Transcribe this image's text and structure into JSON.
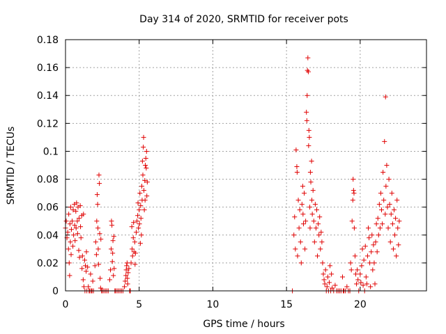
{
  "chart_data": {
    "type": "scatter",
    "title": "Day 314 of 2020, SRMTID for receiver pots",
    "xlabel": "GPS time / hours",
    "ylabel": "SRMTID / TECUs",
    "xlim": [
      0,
      24.5
    ],
    "ylim": [
      0,
      0.18
    ],
    "grid": true,
    "marker": "+",
    "marker_color": "#e00000",
    "x_ticks": [
      0,
      5,
      10,
      15,
      20
    ],
    "x_tick_labels": [
      "0",
      "5",
      "10",
      "15",
      "20"
    ],
    "y_ticks": [
      0,
      0.02,
      0.04,
      0.06,
      0.08,
      0.1,
      0.12,
      0.14,
      0.16,
      0.18
    ],
    "y_tick_labels": [
      "0",
      "0.02",
      "0.04",
      "0.06",
      "0.08",
      "0.1",
      "0.12",
      "0.14",
      "0.16",
      "0.18"
    ],
    "series": [
      {
        "name": "pots",
        "points": [
          [
            0.0,
            0.045
          ],
          [
            0.05,
            0.05
          ],
          [
            0.1,
            0.038
          ],
          [
            0.15,
            0.042
          ],
          [
            0.2,
            0.03
          ],
          [
            0.22,
            0.055
          ],
          [
            0.25,
            0.02
          ],
          [
            0.28,
            0.011
          ],
          [
            0.3,
            0.048
          ],
          [
            0.33,
            0.035
          ],
          [
            0.35,
            0.06
          ],
          [
            0.38,
            0.026
          ],
          [
            0.4,
            0.044
          ],
          [
            0.45,
            0.05
          ],
          [
            0.5,
            0.032
          ],
          [
            0.52,
            0.058
          ],
          [
            0.55,
            0.04
          ],
          [
            0.6,
            0.062
          ],
          [
            0.62,
            0.047
          ],
          [
            0.65,
            0.036
          ],
          [
            0.7,
            0.057
          ],
          [
            0.72,
            0.045
          ],
          [
            0.75,
            0.063
          ],
          [
            0.8,
            0.05
          ],
          [
            0.82,
            0.041
          ],
          [
            0.85,
            0.06
          ],
          [
            0.9,
            0.029
          ],
          [
            0.92,
            0.052
          ],
          [
            0.95,
            0.024
          ],
          [
            1.0,
            0.061
          ],
          [
            1.02,
            0.046
          ],
          [
            1.05,
            0.038
          ],
          [
            1.1,
            0.054
          ],
          [
            1.12,
            0.016
          ],
          [
            1.15,
            0.025
          ],
          [
            1.2,
            0.008
          ],
          [
            1.22,
            0.055
          ],
          [
            1.25,
            0.003
          ],
          [
            1.3,
            0.022
          ],
          [
            1.32,
            0.0
          ],
          [
            1.35,
            0.018
          ],
          [
            1.4,
            0.014
          ],
          [
            1.42,
            0.028
          ],
          [
            1.45,
            0.0
          ],
          [
            1.5,
            0.017
          ],
          [
            1.55,
            0.003
          ],
          [
            1.6,
            0.0
          ],
          [
            1.65,
            0.0
          ],
          [
            1.7,
            0.012
          ],
          [
            1.75,
            0.0
          ],
          [
            1.8,
            0.0
          ],
          [
            1.85,
            0.007
          ],
          [
            1.9,
            0.0
          ],
          [
            2.0,
            0.018
          ],
          [
            2.05,
            0.035
          ],
          [
            2.1,
            0.026
          ],
          [
            2.12,
            0.05
          ],
          [
            2.15,
            0.069
          ],
          [
            2.18,
            0.062
          ],
          [
            2.2,
            0.045
          ],
          [
            2.22,
            0.03
          ],
          [
            2.25,
            0.019
          ],
          [
            2.27,
            0.083
          ],
          [
            2.3,
            0.077
          ],
          [
            2.32,
            0.041
          ],
          [
            2.35,
            0.009
          ],
          [
            2.38,
            0.002
          ],
          [
            2.4,
            0.037
          ],
          [
            2.45,
            0.0
          ],
          [
            2.5,
            0.0
          ],
          [
            2.6,
            0.0
          ],
          [
            2.7,
            0.0
          ],
          [
            2.8,
            0.0
          ],
          [
            2.9,
            0.0
          ],
          [
            3.0,
            0.008
          ],
          [
            3.05,
            0.015
          ],
          [
            3.1,
            0.03
          ],
          [
            3.12,
            0.05
          ],
          [
            3.15,
            0.047
          ],
          [
            3.18,
            0.021
          ],
          [
            3.2,
            0.027
          ],
          [
            3.22,
            0.036
          ],
          [
            3.25,
            0.011
          ],
          [
            3.28,
            0.039
          ],
          [
            3.3,
            0.016
          ],
          [
            3.35,
            0.0
          ],
          [
            3.4,
            0.0
          ],
          [
            3.5,
            0.0
          ],
          [
            3.6,
            0.0
          ],
          [
            3.7,
            0.0
          ],
          [
            3.8,
            0.0
          ],
          [
            3.9,
            0.0
          ],
          [
            4.0,
            0.003
          ],
          [
            4.05,
            0.007
          ],
          [
            4.1,
            0.011
          ],
          [
            4.12,
            0.015
          ],
          [
            4.15,
            0.018
          ],
          [
            4.18,
            0.02
          ],
          [
            4.2,
            0.009
          ],
          [
            4.22,
            0.005
          ],
          [
            4.25,
            0.013
          ],
          [
            4.3,
            0.016
          ],
          [
            4.35,
            0.0
          ],
          [
            4.4,
            0.0
          ],
          [
            4.45,
            0.02
          ],
          [
            4.5,
            0.046
          ],
          [
            4.52,
            0.03
          ],
          [
            4.55,
            0.025
          ],
          [
            4.6,
            0.038
          ],
          [
            4.62,
            0.049
          ],
          [
            4.65,
            0.028
          ],
          [
            4.7,
            0.035
          ],
          [
            4.72,
            0.019
          ],
          [
            4.75,
            0.027
          ],
          [
            4.8,
            0.042
          ],
          [
            4.85,
            0.05
          ],
          [
            4.9,
            0.054
          ],
          [
            4.92,
            0.063
          ],
          [
            4.95,
            0.045
          ],
          [
            5.0,
            0.058
          ],
          [
            5.02,
            0.048
          ],
          [
            5.05,
            0.07
          ],
          [
            5.08,
            0.034
          ],
          [
            5.1,
            0.061
          ],
          [
            5.12,
            0.052
          ],
          [
            5.15,
            0.04
          ],
          [
            5.18,
            0.075
          ],
          [
            5.2,
            0.065
          ],
          [
            5.22,
            0.093
          ],
          [
            5.25,
            0.083
          ],
          [
            5.28,
            0.103
          ],
          [
            5.3,
            0.11
          ],
          [
            5.32,
            0.072
          ],
          [
            5.35,
            0.058
          ],
          [
            5.38,
            0.079
          ],
          [
            5.4,
            0.065
          ],
          [
            5.42,
            0.09
          ],
          [
            5.45,
            0.095
          ],
          [
            5.48,
            0.088
          ],
          [
            5.5,
            0.1
          ],
          [
            5.52,
            0.068
          ],
          [
            5.55,
            0.078
          ],
          [
            15.4,
            0.0
          ],
          [
            15.5,
            0.04
          ],
          [
            15.55,
            0.053
          ],
          [
            15.6,
            0.03
          ],
          [
            15.65,
            0.101
          ],
          [
            15.7,
            0.089
          ],
          [
            15.72,
            0.085
          ],
          [
            15.75,
            0.025
          ],
          [
            15.8,
            0.065
          ],
          [
            15.85,
            0.045
          ],
          [
            15.9,
            0.058
          ],
          [
            15.95,
            0.035
          ],
          [
            16.0,
            0.02
          ],
          [
            16.05,
            0.062
          ],
          [
            16.1,
            0.075
          ],
          [
            16.12,
            0.055
          ],
          [
            16.15,
            0.048
          ],
          [
            16.2,
            0.07
          ],
          [
            16.25,
            0.03
          ],
          [
            16.3,
            0.05
          ],
          [
            16.35,
            0.128
          ],
          [
            16.38,
            0.122
          ],
          [
            16.4,
            0.14
          ],
          [
            16.42,
            0.158
          ],
          [
            16.45,
            0.167
          ],
          [
            16.48,
            0.157
          ],
          [
            16.5,
            0.104
          ],
          [
            16.52,
            0.115
          ],
          [
            16.55,
            0.11
          ],
          [
            16.58,
            0.06
          ],
          [
            16.6,
            0.045
          ],
          [
            16.62,
            0.085
          ],
          [
            16.65,
            0.078
          ],
          [
            16.7,
            0.093
          ],
          [
            16.72,
            0.065
          ],
          [
            16.75,
            0.055
          ],
          [
            16.8,
            0.072
          ],
          [
            16.85,
            0.05
          ],
          [
            16.9,
            0.035
          ],
          [
            16.95,
            0.062
          ],
          [
            17.0,
            0.045
          ],
          [
            17.05,
            0.058
          ],
          [
            17.1,
            0.025
          ],
          [
            17.15,
            0.048
          ],
          [
            17.2,
            0.04
          ],
          [
            17.25,
            0.053
          ],
          [
            17.3,
            0.03
          ],
          [
            17.35,
            0.042
          ],
          [
            17.4,
            0.035
          ],
          [
            17.45,
            0.02
          ],
          [
            17.5,
            0.012
          ],
          [
            17.55,
            0.008
          ],
          [
            17.6,
            0.005
          ],
          [
            17.65,
            0.015
          ],
          [
            17.7,
            0.0
          ],
          [
            17.75,
            0.003
          ],
          [
            17.8,
            0.01
          ],
          [
            17.85,
            0.0
          ],
          [
            17.9,
            0.006
          ],
          [
            17.95,
            0.018
          ],
          [
            18.0,
            0.0
          ],
          [
            18.05,
            0.012
          ],
          [
            18.1,
            0.002
          ],
          [
            18.2,
            0.0
          ],
          [
            18.3,
            0.004
          ],
          [
            18.4,
            0.0
          ],
          [
            18.5,
            0.0
          ],
          [
            18.6,
            0.0
          ],
          [
            18.7,
            0.0
          ],
          [
            18.8,
            0.01
          ],
          [
            18.85,
            0.0
          ],
          [
            18.9,
            0.0
          ],
          [
            19.0,
            0.0
          ],
          [
            19.1,
            0.003
          ],
          [
            19.2,
            0.0
          ],
          [
            19.3,
            0.0
          ],
          [
            19.35,
            0.02
          ],
          [
            19.4,
            0.015
          ],
          [
            19.45,
            0.05
          ],
          [
            19.5,
            0.065
          ],
          [
            19.52,
            0.08
          ],
          [
            19.55,
            0.072
          ],
          [
            19.58,
            0.07
          ],
          [
            19.6,
            0.045
          ],
          [
            19.65,
            0.025
          ],
          [
            19.7,
            0.012
          ],
          [
            19.75,
            0.005
          ],
          [
            19.8,
            0.015
          ],
          [
            19.85,
            0.008
          ],
          [
            19.9,
            0.0
          ],
          [
            20.0,
            0.012
          ],
          [
            20.05,
            0.006
          ],
          [
            20.1,
            0.018
          ],
          [
            20.15,
            0.03
          ],
          [
            20.2,
            0.004
          ],
          [
            20.25,
            0.022
          ],
          [
            20.3,
            0.0
          ],
          [
            20.35,
            0.032
          ],
          [
            20.4,
            0.01
          ],
          [
            20.45,
            0.005
          ],
          [
            20.5,
            0.025
          ],
          [
            20.55,
            0.045
          ],
          [
            20.6,
            0.038
          ],
          [
            20.65,
            0.02
          ],
          [
            20.7,
            0.003
          ],
          [
            20.75,
            0.028
          ],
          [
            20.8,
            0.04
          ],
          [
            20.85,
            0.015
          ],
          [
            20.9,
            0.033
          ],
          [
            20.95,
            0.02
          ],
          [
            21.0,
            0.005
          ],
          [
            21.05,
            0.035
          ],
          [
            21.1,
            0.048
          ],
          [
            21.15,
            0.028
          ],
          [
            21.2,
            0.052
          ],
          [
            21.25,
            0.04
          ],
          [
            21.3,
            0.062
          ],
          [
            21.35,
            0.045
          ],
          [
            21.4,
            0.07
          ],
          [
            21.45,
            0.058
          ],
          [
            21.5,
            0.048
          ],
          [
            21.55,
            0.085
          ],
          [
            21.6,
            0.065
          ],
          [
            21.65,
            0.107
          ],
          [
            21.7,
            0.055
          ],
          [
            21.72,
            0.139
          ],
          [
            21.75,
            0.075
          ],
          [
            21.8,
            0.09
          ],
          [
            21.85,
            0.06
          ],
          [
            21.9,
            0.045
          ],
          [
            21.95,
            0.08
          ],
          [
            22.0,
            0.062
          ],
          [
            22.05,
            0.035
          ],
          [
            22.1,
            0.055
          ],
          [
            22.15,
            0.07
          ],
          [
            22.2,
            0.048
          ],
          [
            22.25,
            0.03
          ],
          [
            22.3,
            0.058
          ],
          [
            22.35,
            0.04
          ],
          [
            22.4,
            0.052
          ],
          [
            22.45,
            0.025
          ],
          [
            22.5,
            0.065
          ],
          [
            22.55,
            0.045
          ],
          [
            22.6,
            0.033
          ],
          [
            22.65,
            0.05
          ]
        ]
      }
    ]
  }
}
